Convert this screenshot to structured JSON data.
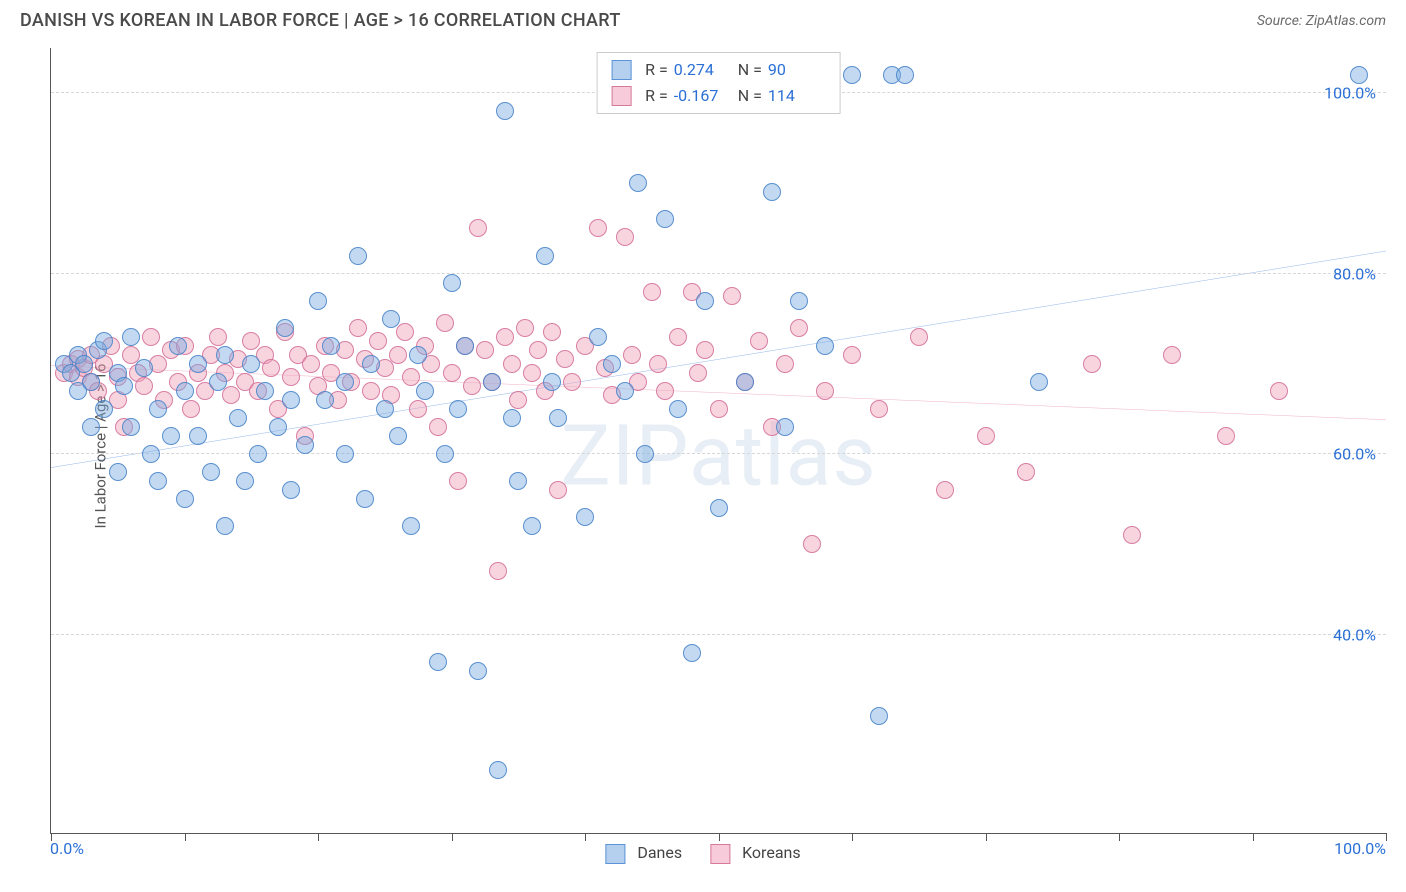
{
  "header": {
    "title": "DANISH VS KOREAN IN LABOR FORCE | AGE > 16 CORRELATION CHART",
    "source": "Source: ZipAtlas.com"
  },
  "watermark": "ZIPatlas",
  "chart": {
    "type": "scatter",
    "ylabel": "In Labor Force | Age > 16",
    "xlim": [
      0,
      100
    ],
    "ylim": [
      18,
      105
    ],
    "x_ticks": [
      0,
      10,
      20,
      30,
      40,
      50,
      60,
      70,
      80,
      90,
      100
    ],
    "x_tick_labels": {
      "left": "0.0%",
      "right": "100.0%"
    },
    "y_gridlines": [
      40,
      60,
      80,
      100
    ],
    "y_tick_labels": [
      "40.0%",
      "60.0%",
      "80.0%",
      "100.0%"
    ],
    "grid_color": "#d6d6d6",
    "axis_color": "#555555",
    "background_color": "#ffffff",
    "label_color": "#2a6fd6",
    "series": {
      "danes": {
        "label": "Danes",
        "R": "0.274",
        "N": "90",
        "fill": "rgba(120,170,225,0.45)",
        "stroke": "#5a94d6",
        "trend": {
          "y_at_x0": 58.5,
          "y_at_x100": 82.5,
          "color": "#1b65d0",
          "width": 2
        },
        "points": [
          [
            1,
            70
          ],
          [
            1.5,
            69
          ],
          [
            2,
            71
          ],
          [
            2,
            67
          ],
          [
            2.5,
            70
          ],
          [
            3,
            68
          ],
          [
            3,
            63
          ],
          [
            3.5,
            71.5
          ],
          [
            4,
            72.5
          ],
          [
            4,
            65
          ],
          [
            5,
            69
          ],
          [
            5,
            58
          ],
          [
            5.5,
            67.5
          ],
          [
            6,
            73
          ],
          [
            6,
            63
          ],
          [
            7,
            69.5
          ],
          [
            7.5,
            60
          ],
          [
            8,
            65
          ],
          [
            8,
            57
          ],
          [
            9,
            62
          ],
          [
            9.5,
            72
          ],
          [
            10,
            67
          ],
          [
            10,
            55
          ],
          [
            11,
            62
          ],
          [
            11,
            70
          ],
          [
            12,
            58
          ],
          [
            12.5,
            68
          ],
          [
            13,
            71
          ],
          [
            13,
            52
          ],
          [
            14,
            64
          ],
          [
            14.5,
            57
          ],
          [
            15,
            70
          ],
          [
            15.5,
            60
          ],
          [
            16,
            67
          ],
          [
            17,
            63
          ],
          [
            17.5,
            74
          ],
          [
            18,
            66
          ],
          [
            18,
            56
          ],
          [
            19,
            61
          ],
          [
            20,
            77
          ],
          [
            20.5,
            66
          ],
          [
            21,
            72
          ],
          [
            22,
            60
          ],
          [
            22,
            68
          ],
          [
            23,
            82
          ],
          [
            23.5,
            55
          ],
          [
            24,
            70
          ],
          [
            25,
            65
          ],
          [
            25.5,
            75
          ],
          [
            26,
            62
          ],
          [
            27,
            52
          ],
          [
            27.5,
            71
          ],
          [
            28,
            67
          ],
          [
            29,
            37
          ],
          [
            29.5,
            60
          ],
          [
            30,
            79
          ],
          [
            30.5,
            65
          ],
          [
            31,
            72
          ],
          [
            32,
            36
          ],
          [
            33,
            68
          ],
          [
            33.5,
            25
          ],
          [
            34,
            98
          ],
          [
            34.5,
            64
          ],
          [
            35,
            57
          ],
          [
            36,
            52
          ],
          [
            37,
            82
          ],
          [
            37.5,
            68
          ],
          [
            38,
            64
          ],
          [
            40,
            53
          ],
          [
            41,
            73
          ],
          [
            42,
            70
          ],
          [
            43,
            67
          ],
          [
            44,
            90
          ],
          [
            44.5,
            60
          ],
          [
            46,
            86
          ],
          [
            47,
            65
          ],
          [
            48,
            38
          ],
          [
            49,
            77
          ],
          [
            50,
            54
          ],
          [
            52,
            68
          ],
          [
            54,
            89
          ],
          [
            55,
            63
          ],
          [
            56,
            77
          ],
          [
            58,
            72
          ],
          [
            60,
            102
          ],
          [
            62,
            31
          ],
          [
            63,
            102
          ],
          [
            64,
            102
          ],
          [
            74,
            68
          ],
          [
            98,
            102
          ]
        ]
      },
      "koreans": {
        "label": "Koreans",
        "R": "-0.167",
        "N": "114",
        "fill": "rgba(240,160,185,0.45)",
        "stroke": "#d67a9a",
        "trend": {
          "y_at_x0": 69.8,
          "y_at_x100": 63.8,
          "color": "#e05a8a",
          "width": 2
        },
        "points": [
          [
            1,
            69
          ],
          [
            1.5,
            70
          ],
          [
            2,
            68.5
          ],
          [
            2,
            70.5
          ],
          [
            2.5,
            69.5
          ],
          [
            3,
            68
          ],
          [
            3,
            71
          ],
          [
            3.5,
            67
          ],
          [
            4,
            70
          ],
          [
            4.5,
            72
          ],
          [
            5,
            68.5
          ],
          [
            5,
            66
          ],
          [
            5.5,
            63
          ],
          [
            6,
            71
          ],
          [
            6.5,
            69
          ],
          [
            7,
            67.5
          ],
          [
            7.5,
            73
          ],
          [
            8,
            70
          ],
          [
            8.5,
            66
          ],
          [
            9,
            71.5
          ],
          [
            9.5,
            68
          ],
          [
            10,
            72
          ],
          [
            10.5,
            65
          ],
          [
            11,
            69
          ],
          [
            11.5,
            67
          ],
          [
            12,
            71
          ],
          [
            12.5,
            73
          ],
          [
            13,
            69
          ],
          [
            13.5,
            66.5
          ],
          [
            14,
            70.5
          ],
          [
            14.5,
            68
          ],
          [
            15,
            72.5
          ],
          [
            15.5,
            67
          ],
          [
            16,
            71
          ],
          [
            16.5,
            69.5
          ],
          [
            17,
            65
          ],
          [
            17.5,
            73.5
          ],
          [
            18,
            68.5
          ],
          [
            18.5,
            71
          ],
          [
            19,
            62
          ],
          [
            19.5,
            70
          ],
          [
            20,
            67.5
          ],
          [
            20.5,
            72
          ],
          [
            21,
            69
          ],
          [
            21.5,
            66
          ],
          [
            22,
            71.5
          ],
          [
            22.5,
            68
          ],
          [
            23,
            74
          ],
          [
            23.5,
            70.5
          ],
          [
            24,
            67
          ],
          [
            24.5,
            72.5
          ],
          [
            25,
            69.5
          ],
          [
            25.5,
            66.5
          ],
          [
            26,
            71
          ],
          [
            26.5,
            73.5
          ],
          [
            27,
            68.5
          ],
          [
            27.5,
            65
          ],
          [
            28,
            72
          ],
          [
            28.5,
            70
          ],
          [
            29,
            63
          ],
          [
            29.5,
            74.5
          ],
          [
            30,
            69
          ],
          [
            30.5,
            57
          ],
          [
            31,
            72
          ],
          [
            31.5,
            67.5
          ],
          [
            32,
            85
          ],
          [
            32.5,
            71.5
          ],
          [
            33,
            68
          ],
          [
            33.5,
            47
          ],
          [
            34,
            73
          ],
          [
            34.5,
            70
          ],
          [
            35,
            66
          ],
          [
            35.5,
            74
          ],
          [
            36,
            69
          ],
          [
            36.5,
            71.5
          ],
          [
            37,
            67
          ],
          [
            37.5,
            73.5
          ],
          [
            38,
            56
          ],
          [
            38.5,
            70.5
          ],
          [
            39,
            68
          ],
          [
            40,
            72
          ],
          [
            41,
            85
          ],
          [
            41.5,
            69.5
          ],
          [
            42,
            66.5
          ],
          [
            43,
            84
          ],
          [
            43.5,
            71
          ],
          [
            44,
            68
          ],
          [
            45,
            78
          ],
          [
            45.5,
            70
          ],
          [
            46,
            67
          ],
          [
            47,
            73
          ],
          [
            48,
            78
          ],
          [
            48.5,
            69
          ],
          [
            49,
            71.5
          ],
          [
            50,
            65
          ],
          [
            51,
            77.5
          ],
          [
            52,
            68
          ],
          [
            53,
            72.5
          ],
          [
            54,
            63
          ],
          [
            55,
            70
          ],
          [
            56,
            74
          ],
          [
            57,
            50
          ],
          [
            58,
            67
          ],
          [
            60,
            71
          ],
          [
            62,
            65
          ],
          [
            65,
            73
          ],
          [
            67,
            56
          ],
          [
            70,
            62
          ],
          [
            73,
            58
          ],
          [
            78,
            70
          ],
          [
            81,
            51
          ],
          [
            84,
            71
          ],
          [
            88,
            62
          ],
          [
            92,
            67
          ]
        ]
      }
    }
  },
  "legend_stats": {
    "r_label": "R =",
    "n_label": "N ="
  }
}
